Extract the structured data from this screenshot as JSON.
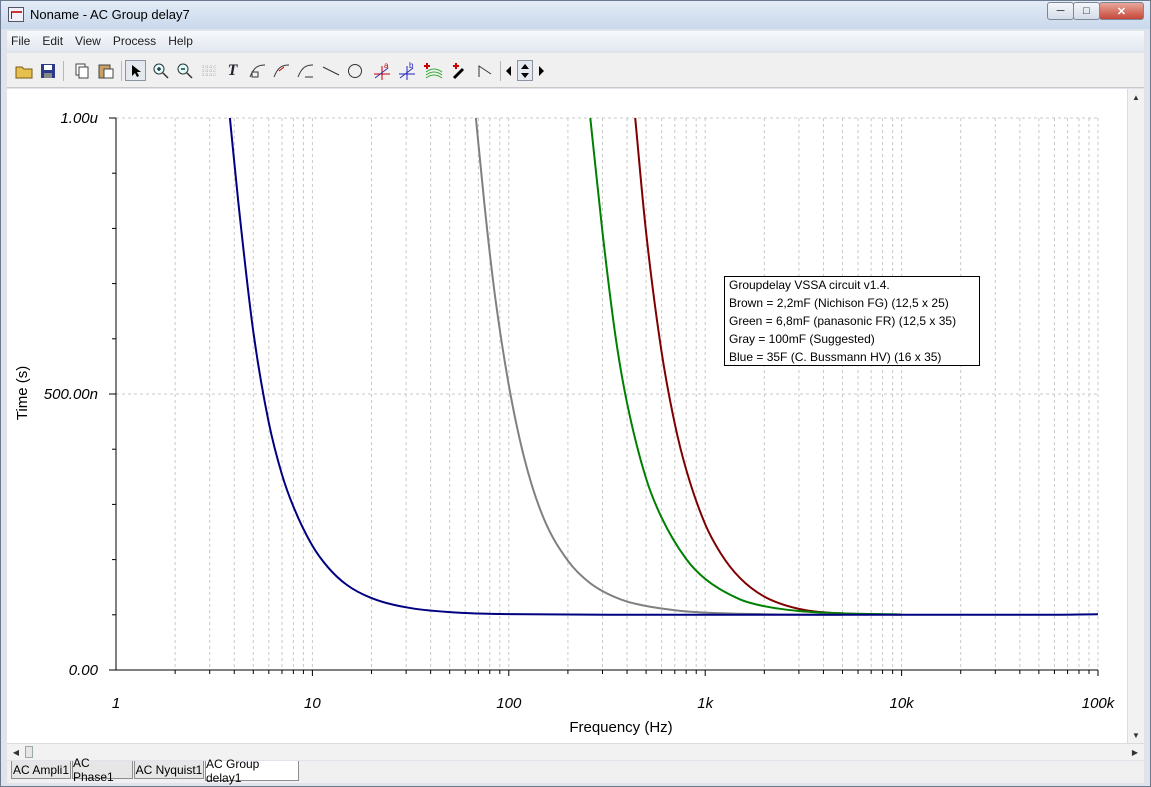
{
  "window": {
    "title": "Noname - AC Group delay7"
  },
  "menu": [
    "File",
    "Edit",
    "View",
    "Process",
    "Help"
  ],
  "toolbar": {
    "buttons": [
      "open-icon",
      "save-icon",
      "copy-icon",
      "paste-icon",
      "pointer-icon",
      "zoom-in-icon",
      "zoom-out-icon",
      "grid-icon",
      "text-icon",
      "curve-label-icon",
      "arrow-label-icon",
      "axis-label-icon",
      "line-icon",
      "ellipse-icon",
      "cursor-a-icon",
      "cursor-b-icon",
      "add-curve-icon",
      "add-marker-icon",
      "angle-icon",
      "left-arrow-icon",
      "up-down-arrow-icon",
      "right-arrow-icon"
    ]
  },
  "tabs": [
    "AC Ampli1",
    "AC Phase1",
    "AC Nyquist1",
    "AC Group delay1"
  ],
  "active_tab": 3,
  "chart_data": {
    "type": "line",
    "xlabel": "Frequency (Hz)",
    "ylabel": "Time (s)",
    "x_scale": "log",
    "xlim": [
      1,
      100000
    ],
    "ylim": [
      0,
      1e-06
    ],
    "x_tick_labels": [
      "1",
      "10",
      "100",
      "1k",
      "10k",
      "100k"
    ],
    "y_tick_labels": [
      "0.00",
      "500.00n",
      "1.00u"
    ],
    "grid": true,
    "annotation_box": [
      "Groupdelay VSSA circuit v1.4.",
      "Brown = 2,2mF (Nichison FG) (12,5 x 25)",
      "Green = 6,8mF (panasonic FR) (12,5 x 35)",
      "Gray = 100mF (Suggested)",
      "Blue = 35F (C. Bussmann HV) (16 x 35)"
    ],
    "series": [
      {
        "color": "#800000",
        "x": [
          440,
          500,
          600,
          700,
          800,
          1000,
          1200,
          1500,
          2000,
          3000,
          5000,
          10000
        ],
        "y": [
          1e-06,
          7.93e-07,
          5.76e-07,
          4.46e-07,
          3.63e-07,
          2.64e-07,
          2.11e-07,
          1.67e-07,
          1.33e-07,
          1.107e-07,
          1.025e-07,
          1.003e-07
        ]
      },
      {
        "color": "#008000",
        "x": [
          260,
          300,
          350,
          400,
          500,
          600,
          800,
          1000,
          1500,
          2000,
          3000,
          5000,
          10000
        ],
        "y": [
          1e-06,
          7.93e-07,
          6.02e-07,
          4.84e-07,
          3.47e-07,
          2.76e-07,
          2.01e-07,
          1.65e-07,
          1.28e-07,
          1.155e-07,
          1.069e-07,
          1.025e-07,
          1.006e-07
        ]
      },
      {
        "color": "#808080",
        "x": [
          68,
          75,
          85,
          100,
          120,
          150,
          200,
          250,
          300,
          400,
          500,
          700,
          1000,
          2000,
          5000
        ],
        "y": [
          1e-06,
          8.46e-07,
          6.79e-07,
          5.16e-07,
          3.83e-07,
          2.76e-07,
          1.98e-07,
          1.62e-07,
          1.43e-07,
          1.24e-07,
          1.16e-07,
          1.083e-07,
          1.04e-07,
          1.01e-07,
          1.002e-07
        ]
      },
      {
        "color": "#000080",
        "x": [
          3.8,
          4.2,
          5,
          6,
          7,
          8,
          10,
          12,
          15,
          20,
          30,
          50,
          100,
          1000,
          10000,
          50000,
          100000
        ],
        "y": [
          1e-06,
          8.46e-07,
          6.13e-07,
          4.48e-07,
          3.54e-07,
          2.96e-07,
          2.25e-07,
          1.86e-07,
          1.54e-07,
          1.303e-07,
          1.135e-07,
          1.049e-07,
          1.012e-07,
          1e-07,
          1e-07,
          1e-07,
          1.01e-07
        ]
      }
    ]
  }
}
